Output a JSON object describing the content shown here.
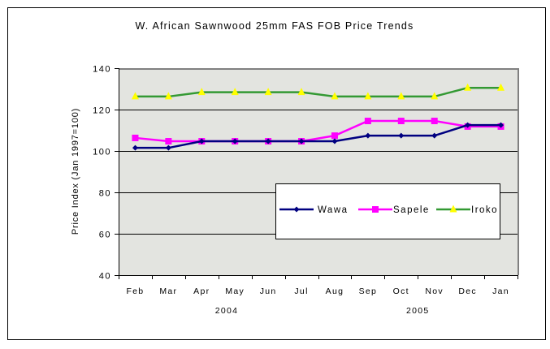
{
  "chart_data": {
    "type": "line",
    "title": "W. African Sawnwood 25mm FAS FOB Price Trends",
    "xlabel": "",
    "ylabel": "Price Index (Jan 1997=100)",
    "ylim": [
      40,
      140
    ],
    "yticks": [
      40,
      60,
      80,
      100,
      120,
      140
    ],
    "grid": true,
    "categories": [
      "Feb",
      "Mar",
      "Apr",
      "May",
      "Jun",
      "Jul",
      "Aug",
      "Sep",
      "Oct",
      "Nov",
      "Dec",
      "Jan"
    ],
    "year_groups": [
      {
        "label": "2004",
        "start": 0,
        "end": 10
      },
      {
        "label": "2005",
        "start": 11,
        "end": 11
      }
    ],
    "year_labels": [
      "2004",
      "2005"
    ],
    "legend_placement": "inside-lower-right",
    "series": [
      {
        "name": "Wawa",
        "color": "#000080",
        "marker": "diamond",
        "marker_color": "#000080",
        "values": [
          101.5,
          101.5,
          104.7,
          104.7,
          104.7,
          104.7,
          104.7,
          107.4,
          107.4,
          107.4,
          112.5,
          112.5
        ]
      },
      {
        "name": "Sapele",
        "color": "#ff00ff",
        "marker": "square",
        "marker_color": "#ff00ff",
        "values": [
          106.3,
          104.7,
          104.7,
          104.7,
          104.7,
          104.7,
          107.4,
          114.5,
          114.5,
          114.5,
          111.8,
          111.8
        ]
      },
      {
        "name": "Iroko",
        "color": "#339933",
        "marker": "triangle",
        "marker_color": "#ffff00",
        "values": [
          126.3,
          126.3,
          128.4,
          128.4,
          128.4,
          128.4,
          126.3,
          126.3,
          126.3,
          126.3,
          130.5,
          130.5
        ]
      }
    ],
    "colors": {
      "plot_background": "#e3e4e0",
      "plot_border": "#808080",
      "frame": "#000000"
    }
  }
}
